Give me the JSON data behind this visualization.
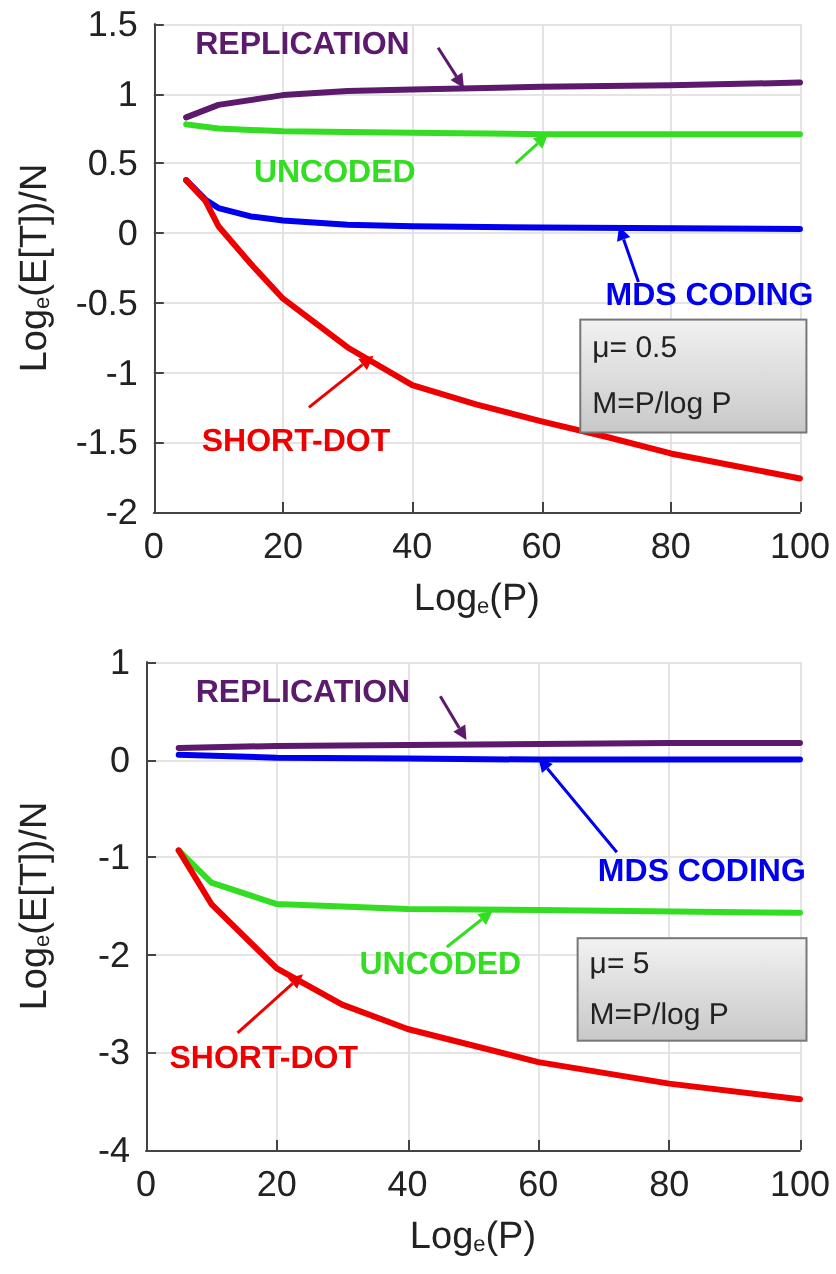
{
  "chart_data": [
    {
      "type": "line",
      "xlabel": "Log$_{e}$(P)",
      "ylabel": "Log$_{e}$(E[T])/N",
      "xlim": [
        0,
        100
      ],
      "xticks": [
        0,
        20,
        40,
        60,
        80,
        100
      ],
      "ylim": [
        -2,
        1.5
      ],
      "yticks": [
        -2,
        -1.5,
        -1,
        -0.5,
        0,
        0.5,
        1,
        1.5
      ],
      "grid": true,
      "legend": "bottom right",
      "marker": "none",
      "line_style": "solid",
      "annotations": [
        "μ= 0.5",
        "M=P/log P"
      ],
      "series": [
        {
          "name": "REPLICATION",
          "color": "#5b1a6b",
          "x": [
            5,
            10,
            20,
            30,
            40,
            60,
            80,
            100
          ],
          "values": [
            0.83,
            0.92,
            0.99,
            1.02,
            1.03,
            1.05,
            1.06,
            1.08
          ]
        },
        {
          "name": "UNCODED",
          "color": "#33dd22",
          "x": [
            5,
            10,
            20,
            40,
            60,
            100
          ],
          "values": [
            0.78,
            0.75,
            0.73,
            0.72,
            0.71,
            0.71
          ]
        },
        {
          "name": "MDS CODING",
          "color": "#0000ee",
          "x": [
            5,
            8,
            10,
            15,
            20,
            30,
            40,
            60,
            100
          ],
          "values": [
            0.38,
            0.24,
            0.18,
            0.12,
            0.09,
            0.06,
            0.05,
            0.04,
            0.03
          ]
        },
        {
          "name": "SHORT-DOT",
          "color": "#ee0000",
          "x": [
            5,
            8,
            10,
            15,
            20,
            30,
            40,
            50,
            60,
            70,
            80,
            90,
            100
          ],
          "values": [
            0.38,
            0.23,
            0.05,
            -0.22,
            -0.47,
            -0.82,
            -1.09,
            -1.23,
            -1.35,
            -1.46,
            -1.58,
            -1.67,
            -1.76
          ]
        }
      ]
    },
    {
      "type": "line",
      "xlabel": "Log$_{e}$(P)",
      "ylabel": "Log$_{e}$(E[T])/N",
      "xlim": [
        0,
        100
      ],
      "xticks": [
        0,
        20,
        40,
        60,
        80,
        100
      ],
      "ylim": [
        -4,
        1
      ],
      "yticks": [
        -4,
        -3,
        -2,
        -1,
        0,
        1
      ],
      "grid": true,
      "legend": "bottom left",
      "marker": "none",
      "line_style": "solid",
      "annotations": [
        "μ= 5",
        "M=P/log P"
      ],
      "series": [
        {
          "name": "REPLICATION",
          "color": "#5b1a6b",
          "x": [
            5,
            20,
            40,
            60,
            80,
            100
          ],
          "values": [
            0.12,
            0.14,
            0.15,
            0.16,
            0.17,
            0.17
          ]
        },
        {
          "name": "MDS CODING",
          "color": "#0000ee",
          "x": [
            5,
            20,
            40,
            60,
            80,
            100
          ],
          "values": [
            0.05,
            0.02,
            0.01,
            0.0,
            0.0,
            0.0
          ]
        },
        {
          "name": "UNCODED",
          "color": "#33dd22",
          "x": [
            5,
            10,
            20,
            40,
            60,
            100
          ],
          "values": [
            -0.93,
            -1.26,
            -1.48,
            -1.53,
            -1.54,
            -1.57
          ]
        },
        {
          "name": "SHORT-DOT",
          "color": "#ee0000",
          "x": [
            5,
            10,
            20,
            30,
            40,
            60,
            80,
            100
          ],
          "values": [
            -0.93,
            -1.48,
            -2.14,
            -2.51,
            -2.76,
            -3.1,
            -3.32,
            -3.48
          ]
        }
      ]
    }
  ]
}
